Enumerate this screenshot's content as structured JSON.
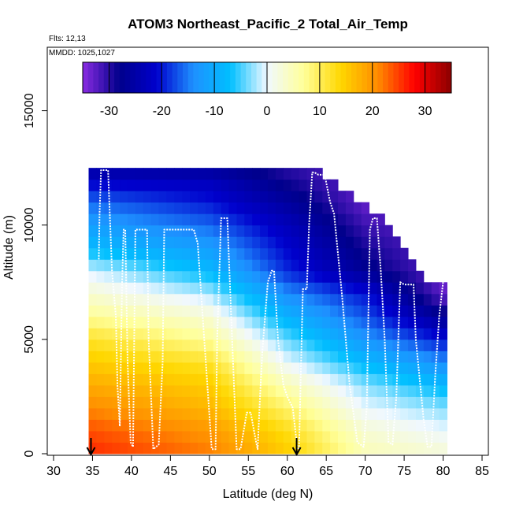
{
  "chart_data": {
    "type": "heatmap",
    "title": "ATOM3 Northeast_Pacific_2 Total_Air_Temp",
    "flights_label": "Flts: 12,13",
    "dates_label": "MMDD: 1025,1027",
    "xlabel": "Latitude (deg N)",
    "ylabel": "Altitude (m)",
    "xlim": [
      30,
      85
    ],
    "ylim": [
      0,
      17500
    ],
    "xticks": [
      "30",
      "35",
      "40",
      "45",
      "50",
      "55",
      "60",
      "65",
      "70",
      "75",
      "80",
      "85"
    ],
    "yticks": [
      "0",
      "5000",
      "10000",
      "15000"
    ],
    "colorbar": {
      "range": [
        -35,
        35
      ],
      "ticks": [
        "-30",
        "-20",
        "-10",
        "0",
        "10",
        "20",
        "30"
      ],
      "colors": [
        "#8a2be2",
        "#00008b",
        "#0000cd",
        "#1e90ff",
        "#00bfff",
        "#f0f8ff",
        "#ffff99",
        "#ffd700",
        "#ff8c00",
        "#ff0000",
        "#8b0000"
      ]
    },
    "cell_size": {
      "lat": 1,
      "alt_m": 500
    },
    "coverage": {
      "lat": [
        35,
        36,
        37,
        38,
        39,
        40,
        41,
        42,
        43,
        44,
        45,
        46,
        47,
        48,
        49,
        50,
        51,
        52,
        53,
        54,
        55,
        56,
        57,
        58,
        59,
        60,
        61,
        62,
        63,
        64,
        65,
        66,
        67,
        68,
        69,
        70,
        71,
        72,
        73,
        74,
        75,
        76,
        77,
        78,
        79,
        80
      ],
      "top_m": [
        12500,
        12500,
        12500,
        12500,
        12500,
        12500,
        12500,
        12500,
        12500,
        12500,
        12500,
        12500,
        12500,
        12500,
        12500,
        12500,
        12500,
        12500,
        12500,
        12500,
        12500,
        12500,
        12500,
        12500,
        12500,
        12500,
        12500,
        12500,
        12500,
        12500,
        12000,
        12000,
        11500,
        11500,
        11000,
        11000,
        10500,
        10500,
        10000,
        9500,
        9000,
        8500,
        8000,
        7500,
        7500,
        7500
      ]
    },
    "temperature_profile": {
      "alt_m": [
        0,
        1000,
        2000,
        3000,
        4000,
        5000,
        6000,
        7000,
        8000,
        9000,
        10000,
        11000,
        12000,
        12500
      ],
      "lat": [
        35,
        50,
        60,
        70,
        80
      ],
      "values_c": [
        [
          26,
          22,
          15,
          5,
          3
        ],
        [
          24,
          20,
          13,
          3,
          0
        ],
        [
          21,
          17,
          9,
          0,
          -3
        ],
        [
          18,
          15,
          5,
          -3,
          -8
        ],
        [
          15,
          12,
          0,
          -8,
          -14
        ],
        [
          12,
          7,
          -4,
          -13,
          -20
        ],
        [
          7,
          3,
          -9,
          -17,
          -27
        ],
        [
          3,
          -2,
          -14,
          -20,
          -33
        ],
        [
          -1,
          -8,
          -19,
          -27,
          -33
        ],
        [
          -8,
          -12,
          -21,
          -29,
          -33
        ],
        [
          -12,
          -16,
          -23,
          -31,
          -33
        ],
        [
          -16,
          -20,
          -26,
          -33,
          -33
        ],
        [
          -22,
          -23,
          -29,
          -33,
          -33
        ],
        [
          -26,
          -27,
          -30,
          -33,
          -33
        ]
      ]
    },
    "flight_track": {
      "lat": [
        35.8,
        35.9,
        36.1,
        37.0,
        37.5,
        38.0,
        38.2,
        38.5,
        38.8,
        39.0,
        39.2,
        39.5,
        39.9,
        40.2,
        40.5,
        40.8,
        42.0,
        42.2,
        42.8,
        43.5,
        44.0,
        44.2,
        45.0,
        45.5,
        48.0,
        48.5,
        50.3,
        50.8,
        51.0,
        51.5,
        52.3,
        52.8,
        53.5,
        54.0,
        54.8,
        55.3,
        56.0,
        56.2,
        56.5,
        56.8,
        57.5,
        58.0,
        58.3,
        58.8,
        59.5,
        60.0,
        60.7,
        61.3,
        61.5,
        62.0,
        62.5,
        62.8,
        63.2,
        63.5,
        64.0,
        64.8,
        65.5,
        66.0,
        67.0,
        68.0,
        69.0,
        69.8,
        70.2,
        70.6,
        71.0,
        71.5,
        72.0,
        72.5,
        73.0,
        73.5,
        74.0,
        74.5,
        75.0,
        75.3,
        75.8,
        76.2,
        76.5,
        77.5,
        78.0,
        78.5,
        79.0,
        79.5,
        80.0
      ],
      "alt_m": [
        8500,
        10500,
        12400,
        12400,
        8000,
        6000,
        3000,
        1200,
        7500,
        9800,
        9800,
        4000,
        500,
        300,
        9800,
        9800,
        9800,
        5000,
        200,
        400,
        4000,
        9800,
        9800,
        9800,
        9800,
        9200,
        200,
        200,
        5000,
        10300,
        10300,
        6000,
        200,
        200,
        1800,
        1800,
        500,
        200,
        2500,
        4500,
        7500,
        8000,
        8000,
        5000,
        3000,
        2500,
        2000,
        200,
        200,
        7200,
        7200,
        10000,
        12300,
        12300,
        12200,
        12200,
        11000,
        10500,
        7000,
        3000,
        500,
        300,
        2000,
        9800,
        10300,
        10300,
        8000,
        5000,
        500,
        400,
        2500,
        7500,
        7400,
        7400,
        7400,
        7400,
        5000,
        1500,
        300,
        300,
        3500,
        6000,
        7500
      ]
    },
    "markers": [
      {
        "lat": 34.8,
        "label": ""
      },
      {
        "lat": 61.2,
        "label": ""
      }
    ]
  }
}
